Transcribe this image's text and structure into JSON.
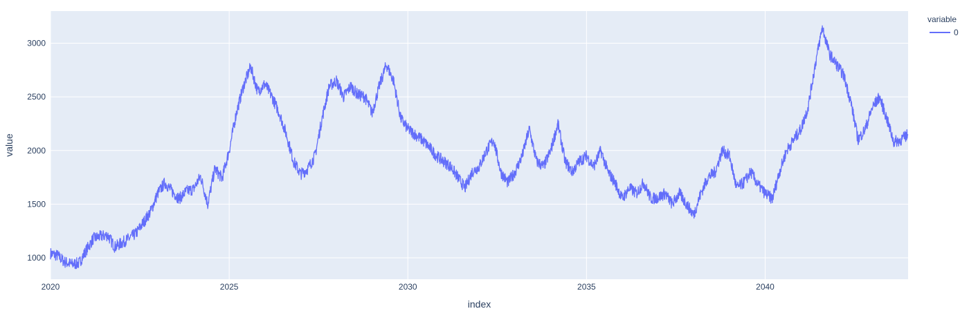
{
  "chart_data": {
    "type": "line",
    "xlabel": "index",
    "ylabel": "value",
    "xlim": [
      2020,
      2044
    ],
    "ylim": [
      800,
      3300
    ],
    "x_ticks": [
      2020,
      2025,
      2030,
      2035,
      2040
    ],
    "y_ticks": [
      1000,
      1500,
      2000,
      2500,
      3000
    ],
    "legend": {
      "title": "variable",
      "position": "top-right"
    },
    "grid": true,
    "plot_bgcolor": "#e5ecf6",
    "series": [
      {
        "name": "0",
        "color": "#636efa",
        "x": [
          2020.0,
          2020.2,
          2020.4,
          2020.6,
          2020.8,
          2021.0,
          2021.2,
          2021.4,
          2021.6,
          2021.8,
          2022.0,
          2022.2,
          2022.4,
          2022.6,
          2022.8,
          2023.0,
          2023.2,
          2023.4,
          2023.6,
          2023.8,
          2024.0,
          2024.2,
          2024.4,
          2024.6,
          2024.8,
          2025.0,
          2025.2,
          2025.4,
          2025.6,
          2025.8,
          2026.0,
          2026.2,
          2026.4,
          2026.6,
          2026.8,
          2027.0,
          2027.2,
          2027.4,
          2027.6,
          2027.8,
          2028.0,
          2028.2,
          2028.4,
          2028.6,
          2028.8,
          2029.0,
          2029.2,
          2029.4,
          2029.6,
          2029.8,
          2030.0,
          2030.2,
          2030.4,
          2030.6,
          2030.8,
          2031.0,
          2031.2,
          2031.4,
          2031.6,
          2031.8,
          2032.0,
          2032.2,
          2032.4,
          2032.6,
          2032.8,
          2033.0,
          2033.2,
          2033.4,
          2033.6,
          2033.8,
          2034.0,
          2034.2,
          2034.4,
          2034.6,
          2034.8,
          2035.0,
          2035.2,
          2035.4,
          2035.6,
          2035.8,
          2036.0,
          2036.2,
          2036.4,
          2036.6,
          2036.8,
          2037.0,
          2037.2,
          2037.4,
          2037.6,
          2037.8,
          2038.0,
          2038.2,
          2038.4,
          2038.6,
          2038.8,
          2039.0,
          2039.2,
          2039.4,
          2039.6,
          2039.8,
          2040.0,
          2040.2,
          2040.4,
          2040.6,
          2040.8,
          2041.0,
          2041.2,
          2041.4,
          2041.6,
          2041.8,
          2042.0,
          2042.2,
          2042.4,
          2042.6,
          2042.8,
          2043.0,
          2043.2,
          2043.4,
          2043.6,
          2043.8,
          2044.0
        ],
        "values": [
          1040,
          1020,
          960,
          940,
          950,
          1070,
          1180,
          1200,
          1210,
          1100,
          1140,
          1180,
          1230,
          1330,
          1430,
          1600,
          1700,
          1620,
          1550,
          1620,
          1640,
          1760,
          1500,
          1830,
          1740,
          2000,
          2350,
          2600,
          2780,
          2550,
          2620,
          2500,
          2350,
          2150,
          1900,
          1780,
          1830,
          1950,
          2300,
          2600,
          2650,
          2500,
          2600,
          2520,
          2500,
          2350,
          2600,
          2800,
          2650,
          2300,
          2200,
          2150,
          2100,
          2030,
          1950,
          1900,
          1850,
          1750,
          1650,
          1800,
          1850,
          2000,
          2100,
          1800,
          1700,
          1800,
          1950,
          2200,
          1900,
          1850,
          2000,
          2250,
          1900,
          1800,
          1900,
          1950,
          1850,
          2000,
          1800,
          1700,
          1550,
          1650,
          1600,
          1700,
          1550,
          1560,
          1600,
          1500,
          1600,
          1500,
          1400,
          1600,
          1750,
          1800,
          2000,
          1950,
          1650,
          1700,
          1800,
          1680,
          1600,
          1550,
          1800,
          2000,
          2100,
          2200,
          2400,
          2800,
          3150,
          2900,
          2800,
          2700,
          2450,
          2100,
          2200,
          2400,
          2500,
          2300,
          2080,
          2100,
          2150
        ]
      }
    ]
  }
}
